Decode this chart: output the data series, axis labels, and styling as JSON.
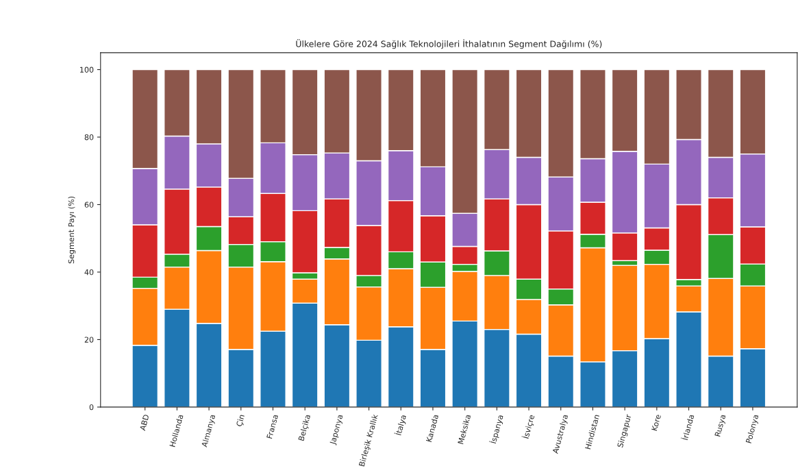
{
  "chart_data": {
    "type": "bar",
    "stacked": true,
    "title": "Ülkelere Göre 2024 Sağlık Teknolojileri İthalatının Segment Dağılımı (%)",
    "ylabel": "Segment Payı (%)",
    "categories": [
      "ABD",
      "Hollanda",
      "Almanya",
      "Çin",
      "Fransa",
      "Belçika",
      "Japonya",
      "Birleşik Krallık",
      "İtalya",
      "Kanada",
      "Meksika",
      "İspanya",
      "İsviçre",
      "Avustralya",
      "Hindistan",
      "Singapur",
      "Kore",
      "İrlanda",
      "Rusya",
      "Polonya"
    ],
    "series": [
      {
        "color": "#1f77b4",
        "values": [
          18.3,
          29,
          24.8,
          17.1,
          22.5,
          30.8,
          24.4,
          19.8,
          23.8,
          17.1,
          25.5,
          23,
          21.6,
          15.1,
          13.4,
          16.7,
          20.3,
          28.2,
          15.1,
          17.3
        ]
      },
      {
        "color": "#ff7f0e",
        "values": [
          16.9,
          12.5,
          21.6,
          24.4,
          20.6,
          7.1,
          19.5,
          15.8,
          17.2,
          18.4,
          14.7,
          16,
          10.3,
          15.2,
          33.8,
          25.3,
          22,
          7.7,
          23,
          18.6
        ]
      },
      {
        "color": "#2ca02c",
        "values": [
          3.3,
          3.8,
          7.1,
          6.7,
          5.9,
          1.9,
          3.4,
          3.4,
          5,
          7.5,
          2.1,
          7.3,
          6,
          4.7,
          4,
          1.4,
          4.2,
          1.9,
          13,
          6.5
        ]
      },
      {
        "color": "#d62728",
        "values": [
          15.5,
          19.3,
          11.7,
          8.2,
          14.3,
          18.4,
          14.4,
          14.8,
          15.2,
          13.7,
          5.3,
          15.4,
          22.1,
          17.2,
          9.5,
          8.2,
          6.6,
          22.2,
          10.9,
          11
        ]
      },
      {
        "color": "#9467bd",
        "values": [
          16.7,
          15.7,
          12.8,
          11.4,
          15,
          16.6,
          13.6,
          19.2,
          14.8,
          14.5,
          9.8,
          14.6,
          14,
          16,
          12.9,
          24.2,
          18.9,
          19.3,
          12,
          21.6
        ]
      },
      {
        "color": "#8c564b",
        "values": [
          29.3,
          19.7,
          22,
          32.2,
          21.7,
          25.2,
          24.7,
          27,
          24,
          28.8,
          42.6,
          23.7,
          26,
          31.8,
          26.4,
          24.2,
          28,
          20.7,
          26,
          25
        ]
      }
    ],
    "ylim": [
      0,
      105
    ],
    "yticks": [
      0,
      20,
      40,
      60,
      80,
      100
    ],
    "grid": false,
    "legend": false
  }
}
